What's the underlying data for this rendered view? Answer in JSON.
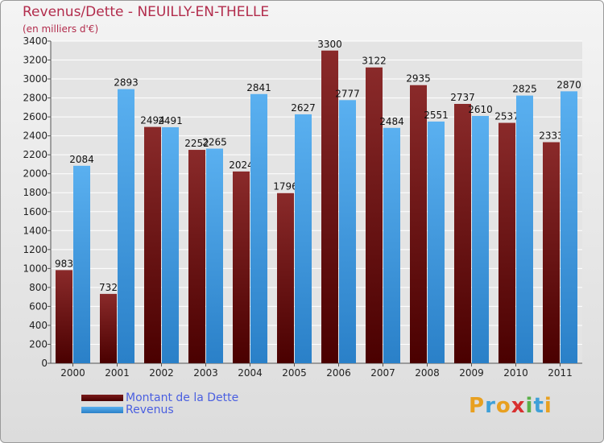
{
  "chart_data": {
    "type": "bar",
    "title": "Revenus/Dette - NEUILLY-EN-THELLE",
    "subtitle": "(en milliers d'€)",
    "categories": [
      "2000",
      "2001",
      "2002",
      "2003",
      "2004",
      "2005",
      "2006",
      "2007",
      "2008",
      "2009",
      "2010",
      "2011"
    ],
    "series": [
      {
        "name": "Montant de la Dette",
        "color": "#7a1a1a",
        "values": [
          983,
          732,
          2494,
          2252,
          2024,
          1796,
          3300,
          3122,
          2935,
          2737,
          2537,
          2333
        ],
        "labels": [
          "983",
          "732",
          "2494",
          "2252",
          "2024",
          "1796",
          "3300",
          "3122",
          "2935",
          "2737",
          "2537",
          "2333"
        ]
      },
      {
        "name": "Revenus",
        "color": "#4aa3e8",
        "values": [
          2084,
          2893,
          2491,
          2265,
          2841,
          2627,
          2777,
          2484,
          2551,
          2610,
          2825,
          2870
        ],
        "labels": [
          "2084",
          "2893",
          "2491",
          "2265",
          "2841",
          "2627",
          "2777",
          "2484",
          "2551",
          "2610",
          "2825",
          "2870"
        ]
      }
    ],
    "ylim": [
      0,
      3400
    ],
    "yticks": [
      "0",
      "200",
      "400",
      "600",
      "800",
      "1000",
      "1200",
      "1400",
      "1600",
      "1800",
      "2000",
      "2200",
      "2400",
      "2600",
      "2800",
      "3000",
      "3200",
      "3400"
    ],
    "grid": true,
    "legend_position": "bottom-left"
  },
  "logo": {
    "letters": [
      "P",
      "r",
      "o",
      "x",
      "i",
      "t",
      "i"
    ],
    "colors": [
      "#e8a020",
      "#3fa0d8",
      "#e8a020",
      "#d83030",
      "#5ab048",
      "#3fa0d8",
      "#e8a020"
    ]
  }
}
